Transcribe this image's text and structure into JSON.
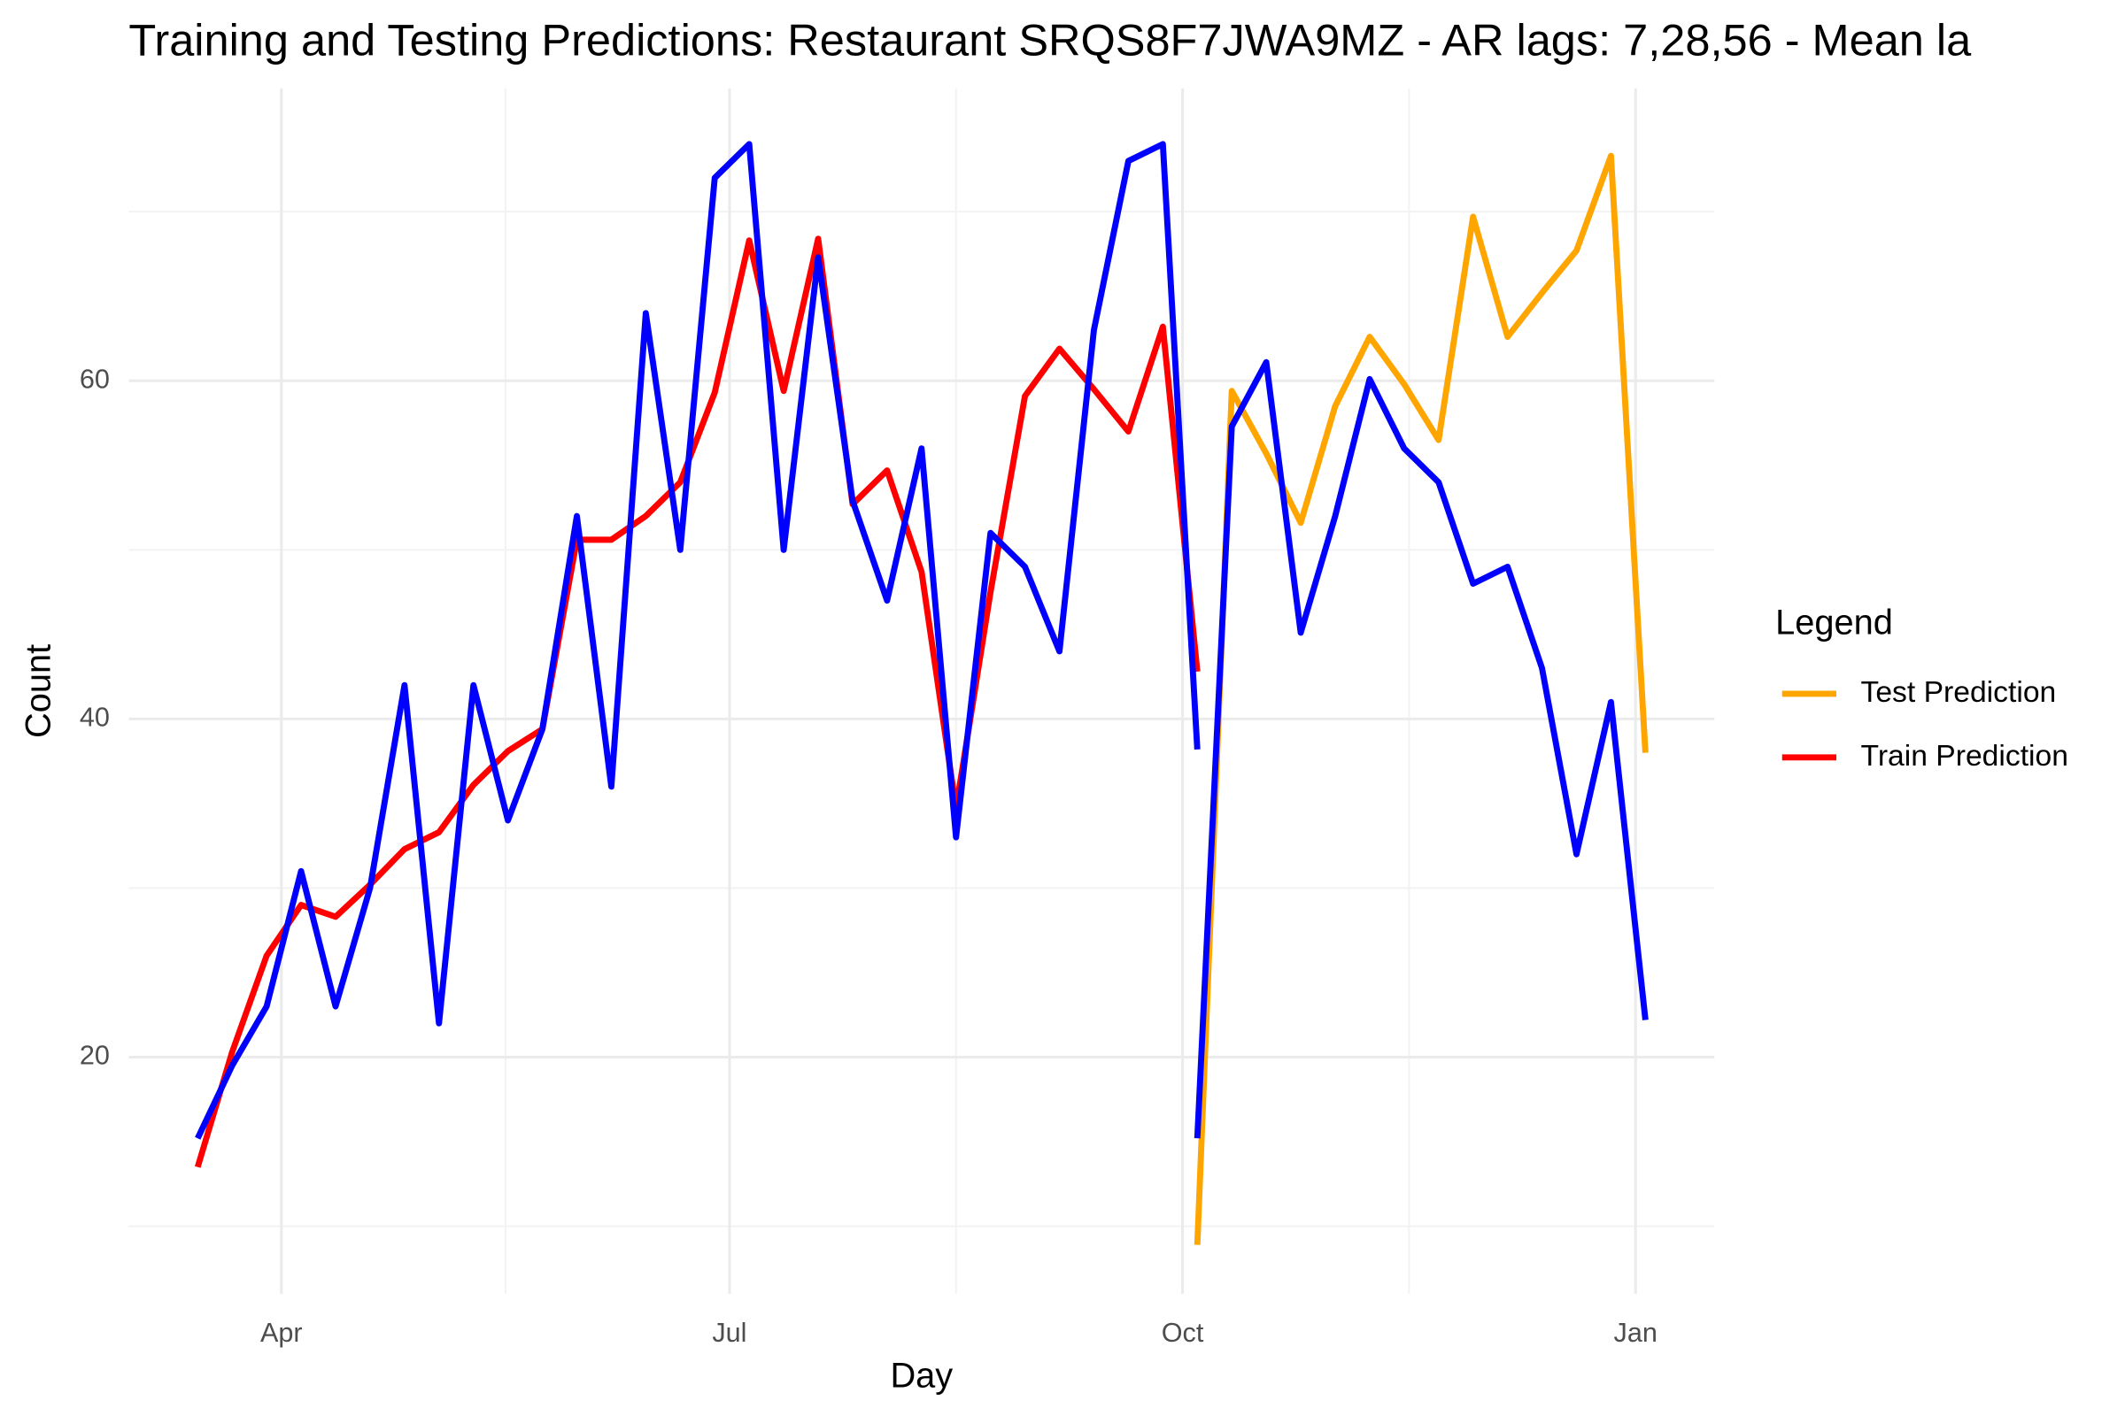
{
  "chart_data": {
    "type": "line",
    "title": "Training and Testing Predictions: Restaurant SRQS8F7JWA9MZ - AR lags: 7,28,56 - Mean la",
    "x_label": "Day",
    "y_label": "Count",
    "legend_title": "Legend",
    "legend_position": "right",
    "grid": true,
    "xlim": [
      -31,
      291
    ],
    "xticks": [
      {
        "value": 0,
        "label": "Apr"
      },
      {
        "value": 91,
        "label": "Jul"
      },
      {
        "value": 183,
        "label": "Oct"
      },
      {
        "value": 275,
        "label": "Jan"
      }
    ],
    "xminorticks": [
      45.5,
      137,
      229
    ],
    "ylim": [
      6,
      77.3
    ],
    "yticks": [
      20,
      40,
      60
    ],
    "yminorticks": [
      10,
      30,
      50,
      70
    ],
    "series": [
      {
        "name": "Test Prediction",
        "color": "#ffa500",
        "x": [
          186,
          193,
          200,
          207,
          214,
          221,
          228,
          235,
          242,
          249,
          256,
          263,
          270,
          277
        ],
        "values": [
          8.9,
          59.4,
          55.7,
          51.6,
          58.5,
          62.6,
          59.8,
          56.5,
          69.7,
          62.6,
          65.2,
          67.7,
          73.3,
          38
        ]
      },
      {
        "name": "Train Prediction",
        "color": "#ff0000",
        "x": [
          -17,
          -10,
          -3,
          4,
          11,
          18,
          25,
          32,
          39,
          46,
          53,
          60,
          67,
          74,
          81,
          88,
          95,
          102,
          109,
          116,
          123,
          130,
          137,
          144,
          151,
          158,
          165,
          172,
          179,
          186
        ],
        "values": [
          13.5,
          20.3,
          26,
          29,
          28.3,
          30.2,
          32.3,
          33.3,
          36.1,
          38.1,
          39.4,
          50.6,
          50.6,
          52,
          54,
          59.3,
          68.3,
          59.4,
          68.4,
          52.7,
          54.7,
          48.7,
          34.7,
          47.5,
          59.1,
          61.9,
          59.5,
          57,
          63.2,
          42.8
        ]
      },
      {
        "color": "#0000ff",
        "x": [
          -17,
          -10,
          -3,
          4,
          11,
          18,
          25,
          32,
          39,
          46,
          53,
          60,
          67,
          74,
          81,
          88,
          95,
          102,
          109,
          116,
          123,
          130,
          137,
          144,
          151,
          158,
          165,
          172,
          179,
          186
        ],
        "values": [
          15.2,
          19.5,
          23,
          31,
          23,
          30,
          42,
          22,
          42,
          34,
          39.4,
          52,
          36,
          64,
          50,
          72,
          74,
          50,
          67.3,
          52.9,
          47,
          56,
          33,
          51,
          49,
          44,
          63,
          73,
          74,
          38.2
        ]
      },
      {
        "color": "#0000ff",
        "x": [
          186,
          193,
          200,
          207,
          214,
          221,
          228,
          235,
          242,
          249,
          256,
          263,
          270,
          277
        ],
        "values": [
          15.2,
          57.3,
          61.1,
          45.1,
          52,
          60.1,
          56,
          54,
          48,
          49,
          43,
          32,
          41,
          22.2
        ]
      }
    ]
  }
}
